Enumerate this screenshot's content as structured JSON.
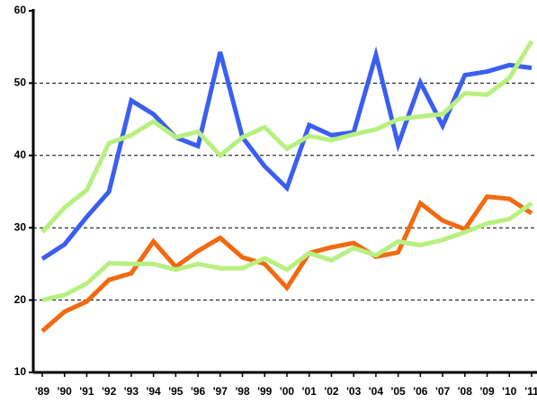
{
  "chart_data": {
    "type": "line",
    "categories": [
      "'89",
      "'90",
      "'91",
      "'92",
      "'93",
      "'94",
      "'95",
      "'96",
      "'97",
      "'98",
      "'99",
      "'00",
      "'01",
      "'02",
      "'03",
      "'04",
      "'05",
      "'06",
      "'07",
      "'08",
      "'09",
      "'10",
      "'11"
    ],
    "series": [
      {
        "color": "#3a5ff0",
        "values": [
          25.7,
          27.7,
          31.5,
          35.0,
          47.6,
          45.7,
          42.5,
          41.3,
          54.3,
          42.5,
          38.5,
          35.5,
          44.2,
          42.8,
          43.2,
          53.9,
          41.5,
          50.1,
          44.1,
          51.1,
          51.6,
          52.5,
          52.1
        ]
      },
      {
        "color": "#b8f080",
        "values": [
          29.4,
          32.8,
          35.2,
          41.7,
          42.8,
          44.7,
          42.5,
          43.3,
          40.0,
          42.5,
          43.9,
          40.9,
          42.7,
          42.1,
          42.9,
          43.6,
          45.0,
          45.4,
          45.7,
          48.6,
          48.4,
          50.7,
          55.8
        ]
      },
      {
        "color": "#f26a10",
        "values": [
          15.7,
          18.4,
          19.8,
          22.8,
          23.7,
          28.1,
          24.6,
          26.8,
          28.6,
          25.9,
          25.0,
          21.7,
          26.5,
          27.3,
          27.9,
          26.0,
          26.6,
          33.4,
          31.0,
          29.8,
          34.3,
          34.0,
          32.0
        ]
      },
      {
        "color": "#b8f080",
        "values": [
          20.0,
          20.7,
          22.3,
          25.1,
          25.0,
          25.0,
          24.2,
          25.0,
          24.4,
          24.4,
          25.8,
          24.2,
          26.5,
          25.5,
          27.2,
          26.2,
          28.1,
          27.6,
          28.3,
          29.4,
          30.6,
          31.2,
          33.4
        ]
      }
    ],
    "ylim": [
      10,
      60
    ],
    "yticks": [
      10,
      20,
      30,
      40,
      50,
      60
    ],
    "grid": true
  }
}
